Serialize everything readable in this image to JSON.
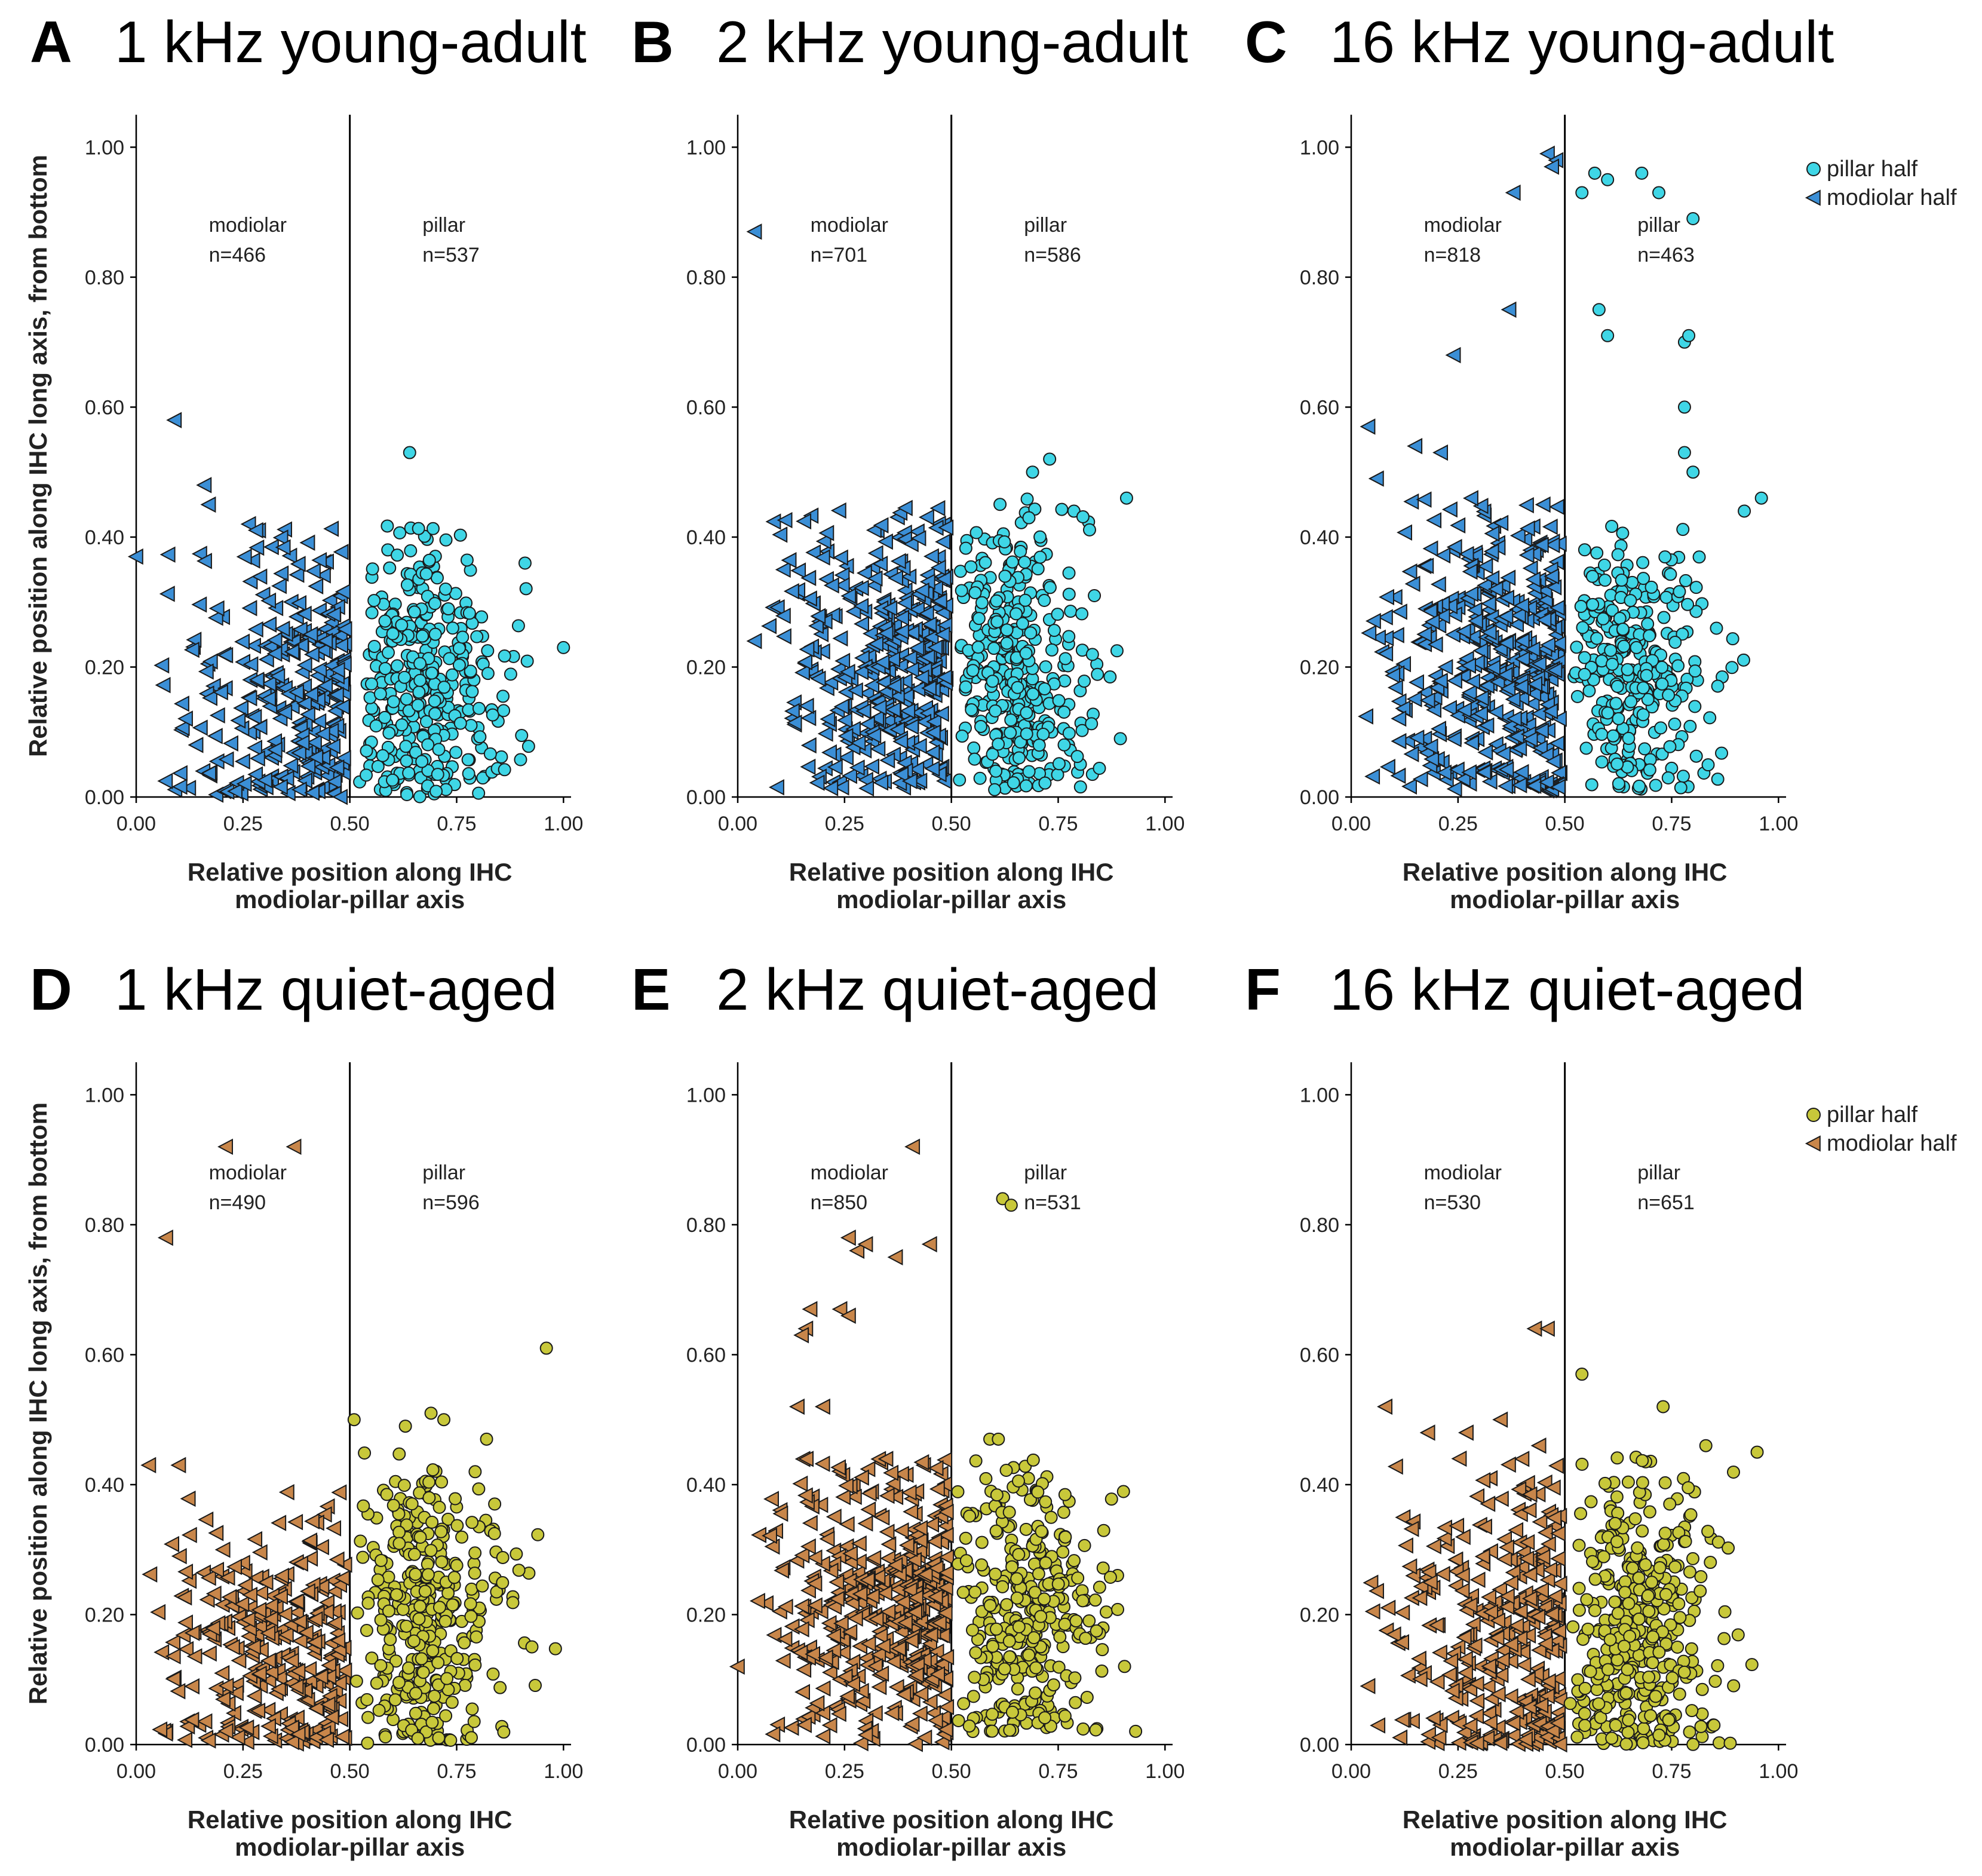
{
  "chart_data": [
    {
      "type": "scatter",
      "letter": "A",
      "title": "1 kHz young-adult",
      "xlabel": [
        "Relative position along IHC",
        "modiolar-pillar axis"
      ],
      "ylabel": "Relative position along IHC long axis, from bottom",
      "xlim": [
        0,
        1
      ],
      "ylim": [
        0,
        1.05
      ],
      "xticks": [
        "0.00",
        "0.25",
        "0.50",
        "0.75",
        "1.00"
      ],
      "yticks": [
        "0.00",
        "0.20",
        "0.40",
        "0.60",
        "0.80",
        "1.00"
      ],
      "divider_x": 0.5,
      "regions": [
        {
          "name": "modiolar",
          "n": "n=466"
        },
        {
          "name": "pillar",
          "n": "n=537"
        }
      ],
      "colors": {
        "pillar": "#3fd6e6",
        "modiolar": "#3b8fd6"
      },
      "cloud": {
        "pillar": {
          "count": 330,
          "x": [
            0.52,
            0.98
          ],
          "y": [
            0.0,
            0.42
          ],
          "peak_y": 0.18
        },
        "modiolar": {
          "count": 300,
          "x": [
            0.03,
            0.49
          ],
          "y": [
            0.0,
            0.42
          ],
          "peak_y": 0.16
        }
      },
      "series": [
        {
          "name": "pillar half",
          "marker": "circle",
          "outliers": [
            [
              0.64,
              0.53
            ],
            [
              1.0,
              0.23
            ],
            [
              0.91,
              0.36
            ]
          ]
        },
        {
          "name": "modiolar half",
          "marker": "triangle-left",
          "outliers": [
            [
              0.09,
              0.58
            ],
            [
              0.0,
              0.37
            ],
            [
              0.16,
              0.48
            ],
            [
              0.17,
              0.45
            ]
          ]
        }
      ]
    },
    {
      "type": "scatter",
      "letter": "B",
      "title": "2 kHz young-adult",
      "xlabel": [
        "Relative position along IHC",
        "modiolar-pillar axis"
      ],
      "ylabel": "",
      "xlim": [
        0,
        1
      ],
      "ylim": [
        0,
        1.05
      ],
      "xticks": [
        "0.00",
        "0.25",
        "0.50",
        "0.75",
        "1.00"
      ],
      "yticks": [
        "0.00",
        "0.20",
        "0.40",
        "0.60",
        "0.80",
        "1.00"
      ],
      "divider_x": 0.5,
      "regions": [
        {
          "name": "modiolar",
          "n": "n=701"
        },
        {
          "name": "pillar",
          "n": "n=586"
        }
      ],
      "colors": {
        "pillar": "#3fd6e6",
        "modiolar": "#3b8fd6"
      },
      "cloud": {
        "pillar": {
          "count": 340,
          "x": [
            0.51,
            0.92
          ],
          "y": [
            0.01,
            0.46
          ],
          "peak_y": 0.2
        },
        "modiolar": {
          "count": 380,
          "x": [
            0.06,
            0.49
          ],
          "y": [
            0.01,
            0.45
          ],
          "peak_y": 0.2
        }
      },
      "series": [
        {
          "name": "pillar half",
          "marker": "circle",
          "outliers": [
            [
              0.73,
              0.52
            ],
            [
              0.69,
              0.5
            ],
            [
              0.91,
              0.46
            ]
          ]
        },
        {
          "name": "modiolar half",
          "marker": "triangle-left",
          "outliers": [
            [
              0.04,
              0.87
            ],
            [
              0.04,
              0.24
            ]
          ]
        }
      ]
    },
    {
      "type": "scatter",
      "letter": "C",
      "title": "16 kHz young-adult",
      "xlabel": [
        "Relative position along IHC",
        "modiolar-pillar axis"
      ],
      "ylabel": "",
      "xlim": [
        0,
        1
      ],
      "ylim": [
        0,
        1.05
      ],
      "xticks": [
        "0.00",
        "0.25",
        "0.50",
        "0.75",
        "1.00"
      ],
      "yticks": [
        "0.00",
        "0.20",
        "0.40",
        "0.60",
        "0.80",
        "1.00"
      ],
      "divider_x": 0.5,
      "regions": [
        {
          "name": "modiolar",
          "n": "n=818"
        },
        {
          "name": "pillar",
          "n": "n=463"
        }
      ],
      "colors": {
        "pillar": "#3fd6e6",
        "modiolar": "#3b8fd6"
      },
      "cloud": {
        "pillar": {
          "count": 300,
          "x": [
            0.51,
            0.97
          ],
          "y": [
            0.01,
            0.42
          ],
          "peak_y": 0.19
        },
        "modiolar": {
          "count": 420,
          "x": [
            0.01,
            0.49
          ],
          "y": [
            0.01,
            0.46
          ],
          "peak_y": 0.2
        }
      },
      "series": [
        {
          "name": "pillar half",
          "marker": "circle",
          "outliers": [
            [
              0.57,
              0.96
            ],
            [
              0.6,
              0.95
            ],
            [
              0.68,
              0.96
            ],
            [
              0.72,
              0.93
            ],
            [
              0.8,
              0.89
            ],
            [
              0.54,
              0.93
            ],
            [
              0.58,
              0.75
            ],
            [
              0.6,
              0.71
            ],
            [
              0.78,
              0.7
            ],
            [
              0.79,
              0.71
            ],
            [
              0.78,
              0.6
            ],
            [
              0.78,
              0.53
            ],
            [
              0.8,
              0.5
            ],
            [
              0.96,
              0.46
            ],
            [
              0.92,
              0.44
            ]
          ]
        },
        {
          "name": "modiolar half",
          "marker": "triangle-left",
          "outliers": [
            [
              0.46,
              0.99
            ],
            [
              0.48,
              0.98
            ],
            [
              0.47,
              0.97
            ],
            [
              0.38,
              0.93
            ],
            [
              0.37,
              0.75
            ],
            [
              0.24,
              0.68
            ],
            [
              0.04,
              0.57
            ],
            [
              0.15,
              0.54
            ],
            [
              0.21,
              0.53
            ],
            [
              0.06,
              0.49
            ],
            [
              0.45,
              0.45
            ]
          ]
        }
      ]
    },
    {
      "type": "scatter",
      "letter": "D",
      "title": "1 kHz quiet-aged",
      "xlabel": [
        "Relative position along IHC",
        "modiolar-pillar axis"
      ],
      "ylabel": "Relative position along IHC long axis, from bottom",
      "xlim": [
        0,
        1
      ],
      "ylim": [
        0,
        1.05
      ],
      "xticks": [
        "0.00",
        "0.25",
        "0.50",
        "0.75",
        "1.00"
      ],
      "yticks": [
        "0.00",
        "0.20",
        "0.40",
        "0.60",
        "0.80",
        "1.00"
      ],
      "divider_x": 0.5,
      "regions": [
        {
          "name": "modiolar",
          "n": "n=490"
        },
        {
          "name": "pillar",
          "n": "n=596"
        }
      ],
      "colors": {
        "pillar": "#c8c83a",
        "modiolar": "#c8864a"
      },
      "cloud": {
        "pillar": {
          "count": 360,
          "x": [
            0.51,
            1.0
          ],
          "y": [
            0.0,
            0.45
          ],
          "peak_y": 0.2
        },
        "modiolar": {
          "count": 300,
          "x": [
            0.0,
            0.49
          ],
          "y": [
            0.0,
            0.4
          ],
          "peak_y": 0.14
        }
      },
      "series": [
        {
          "name": "pillar half",
          "marker": "circle",
          "outliers": [
            [
              0.96,
              0.61
            ],
            [
              0.51,
              0.5
            ],
            [
              0.63,
              0.49
            ],
            [
              0.69,
              0.51
            ],
            [
              0.72,
              0.5
            ],
            [
              0.82,
              0.47
            ]
          ]
        },
        {
          "name": "modiolar half",
          "marker": "triangle-left",
          "outliers": [
            [
              0.21,
              0.92
            ],
            [
              0.37,
              0.92
            ],
            [
              0.07,
              0.78
            ],
            [
              0.03,
              0.43
            ],
            [
              0.1,
              0.43
            ]
          ]
        }
      ]
    },
    {
      "type": "scatter",
      "letter": "E",
      "title": "2 kHz quiet-aged",
      "xlabel": [
        "Relative position along IHC",
        "modiolar-pillar axis"
      ],
      "ylabel": "",
      "xlim": [
        0,
        1
      ],
      "ylim": [
        0,
        1.05
      ],
      "xticks": [
        "0.00",
        "0.25",
        "0.50",
        "0.75",
        "1.00"
      ],
      "yticks": [
        "0.00",
        "0.20",
        "0.40",
        "0.60",
        "0.80",
        "1.00"
      ],
      "divider_x": 0.5,
      "regions": [
        {
          "name": "modiolar",
          "n": "n=850"
        },
        {
          "name": "pillar",
          "n": "n=531"
        }
      ],
      "colors": {
        "pillar": "#c8c83a",
        "modiolar": "#c8864a"
      },
      "cloud": {
        "pillar": {
          "count": 330,
          "x": [
            0.51,
            0.99
          ],
          "y": [
            0.02,
            0.46
          ],
          "peak_y": 0.2
        },
        "modiolar": {
          "count": 440,
          "x": [
            0.02,
            0.49
          ],
          "y": [
            0.0,
            0.44
          ],
          "peak_y": 0.2
        }
      },
      "series": [
        {
          "name": "pillar half",
          "marker": "circle",
          "outliers": [
            [
              0.62,
              0.84
            ],
            [
              0.64,
              0.83
            ],
            [
              0.59,
              0.47
            ],
            [
              0.61,
              0.47
            ]
          ]
        },
        {
          "name": "modiolar half",
          "marker": "triangle-left",
          "outliers": [
            [
              0.41,
              0.92
            ],
            [
              0.26,
              0.78
            ],
            [
              0.28,
              0.76
            ],
            [
              0.3,
              0.77
            ],
            [
              0.37,
              0.75
            ],
            [
              0.45,
              0.77
            ],
            [
              0.17,
              0.67
            ],
            [
              0.16,
              0.64
            ],
            [
              0.24,
              0.67
            ],
            [
              0.26,
              0.66
            ],
            [
              0.15,
              0.63
            ],
            [
              0.14,
              0.52
            ],
            [
              0.2,
              0.52
            ],
            [
              0.0,
              0.12
            ]
          ]
        }
      ]
    },
    {
      "type": "scatter",
      "letter": "F",
      "title": "16 kHz quiet-aged",
      "xlabel": [
        "Relative position along IHC",
        "modiolar-pillar axis"
      ],
      "ylabel": "",
      "xlim": [
        0,
        1
      ],
      "ylim": [
        0,
        1.05
      ],
      "xticks": [
        "0.00",
        "0.25",
        "0.50",
        "0.75",
        "1.00"
      ],
      "yticks": [
        "0.00",
        "0.20",
        "0.40",
        "0.60",
        "0.80",
        "1.00"
      ],
      "divider_x": 0.5,
      "regions": [
        {
          "name": "modiolar",
          "n": "n=530"
        },
        {
          "name": "pillar",
          "n": "n=651"
        }
      ],
      "colors": {
        "pillar": "#c8c83a",
        "modiolar": "#c8864a"
      },
      "cloud": {
        "pillar": {
          "count": 380,
          "x": [
            0.51,
            0.99
          ],
          "y": [
            0.0,
            0.46
          ],
          "peak_y": 0.18
        },
        "modiolar": {
          "count": 320,
          "x": [
            0.03,
            0.49
          ],
          "y": [
            0.0,
            0.44
          ],
          "peak_y": 0.16
        }
      },
      "series": [
        {
          "name": "pillar half",
          "marker": "circle",
          "outliers": [
            [
              0.54,
              0.57
            ],
            [
              0.73,
              0.52
            ],
            [
              0.83,
              0.46
            ],
            [
              0.95,
              0.45
            ]
          ]
        },
        {
          "name": "modiolar half",
          "marker": "triangle-left",
          "outliers": [
            [
              0.43,
              0.64
            ],
            [
              0.46,
              0.64
            ],
            [
              0.08,
              0.52
            ],
            [
              0.18,
              0.48
            ],
            [
              0.27,
              0.48
            ],
            [
              0.35,
              0.5
            ],
            [
              0.44,
              0.46
            ],
            [
              0.04,
              0.09
            ]
          ]
        }
      ]
    }
  ],
  "legends": [
    {
      "row": "young-adult",
      "items": [
        {
          "label": "pillar half",
          "marker": "circle",
          "color": "#3fd6e6"
        },
        {
          "label": "modiolar half",
          "marker": "triangle-left",
          "color": "#3b8fd6"
        }
      ]
    },
    {
      "row": "quiet-aged",
      "items": [
        {
          "label": "pillar half",
          "marker": "circle",
          "color": "#c8c83a"
        },
        {
          "label": "modiolar half",
          "marker": "triangle-left",
          "color": "#c8864a"
        }
      ]
    }
  ]
}
